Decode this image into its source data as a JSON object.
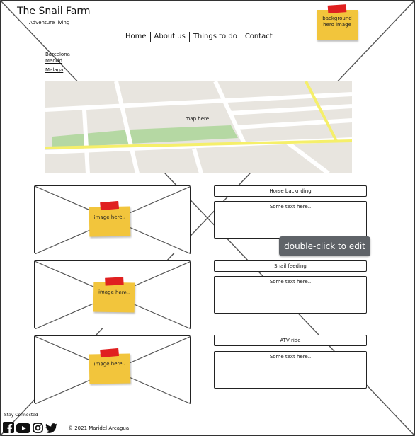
{
  "header": {
    "title": "The Snail Farm",
    "tagline": "Adventure living",
    "hero_note": "background hero image"
  },
  "nav": {
    "items": [
      "Home",
      "About us",
      "Things to do",
      "Contact"
    ]
  },
  "cities": [
    "Barcelona",
    "Madrid",
    "Malaga"
  ],
  "map": {
    "label": "map here.."
  },
  "activities": [
    {
      "image_label": "image here..",
      "title": "Horse backriding",
      "text": "Some text here.."
    },
    {
      "image_label": "image here..",
      "title": "Snail feeding",
      "text": "Some text here.."
    },
    {
      "image_label": "image here..",
      "title": "ATV ride",
      "text": "Some text here.."
    }
  ],
  "tooltip": "double-click to edit",
  "footer": {
    "stay_connected": "Stay Connected",
    "social_icons": [
      "facebook-icon",
      "youtube-icon",
      "instagram-icon",
      "twitter-icon"
    ],
    "copyright": "©  2021 Maridel Arcagua"
  },
  "colors": {
    "sticky_note": "#f2c53c",
    "tape": "#e02020",
    "map_background": "#e8e5df",
    "map_road_highlight": "#f5ef6a",
    "map_park": "#b5d8a3",
    "tooltip_background": "#5f6368"
  }
}
